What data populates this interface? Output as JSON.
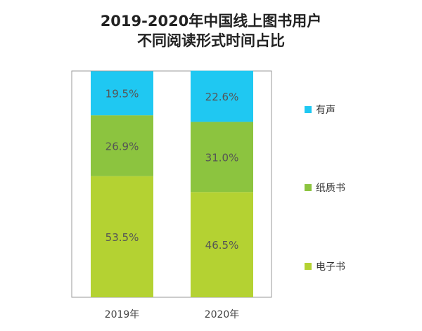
{
  "chart_data": {
    "type": "bar",
    "stacked": true,
    "title": "2019-2020年中国线上图书用户",
    "subtitle": "不同阅读形式时间占比",
    "categories": [
      "2019年",
      "2020年"
    ],
    "series": [
      {
        "name": "电子书",
        "values": [
          53.5,
          46.5
        ],
        "color": "#B4D232"
      },
      {
        "name": "纸质书",
        "values": [
          26.9,
          31.0
        ],
        "color": "#8CC43F"
      },
      {
        "name": "有声",
        "values": [
          19.5,
          22.6
        ],
        "color": "#1FC8F2"
      }
    ],
    "value_format": "percent",
    "ylim": [
      0,
      100
    ],
    "grid": false,
    "legend_placement": "right",
    "legend_order": [
      "有声",
      "纸质书",
      "电子书"
    ]
  }
}
